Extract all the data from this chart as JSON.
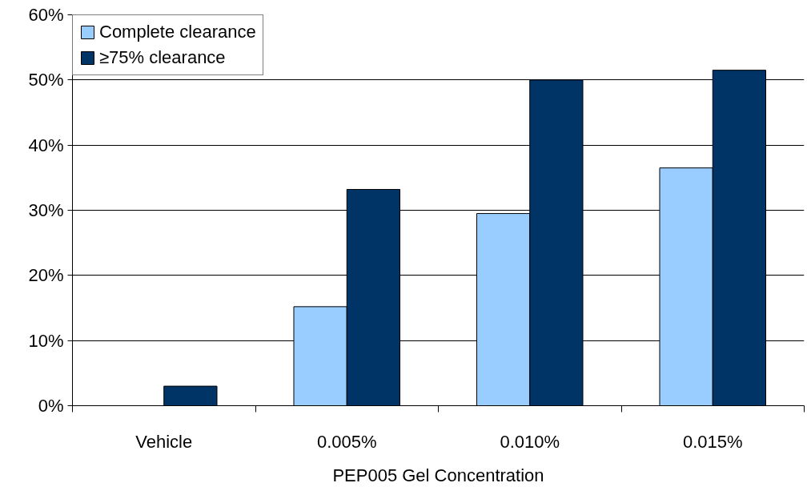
{
  "chart_data": {
    "type": "bar",
    "xlabel": "PEP005 Gel Concentration",
    "categories": [
      "Vehicle",
      "0.005%",
      "0.010%",
      "0.015%"
    ],
    "series": [
      {
        "name": "Complete clearance",
        "color": "#99ccff",
        "values": [
          null,
          15.2,
          29.5,
          36.5
        ]
      },
      {
        "name": "≥75% clearance",
        "color": "#003366",
        "values": [
          3,
          33.2,
          50,
          51.5
        ]
      }
    ],
    "ylim": [
      0,
      60
    ],
    "yticks": [
      {
        "value": 0,
        "label": "0%"
      },
      {
        "value": 10,
        "label": "10%"
      },
      {
        "value": 20,
        "label": "20%"
      },
      {
        "value": 30,
        "label": "30%"
      },
      {
        "value": 40,
        "label": "40%"
      },
      {
        "value": 50,
        "label": "50%"
      },
      {
        "value": 60,
        "label": "60%"
      }
    ],
    "grid": "y",
    "legend": "top left"
  }
}
